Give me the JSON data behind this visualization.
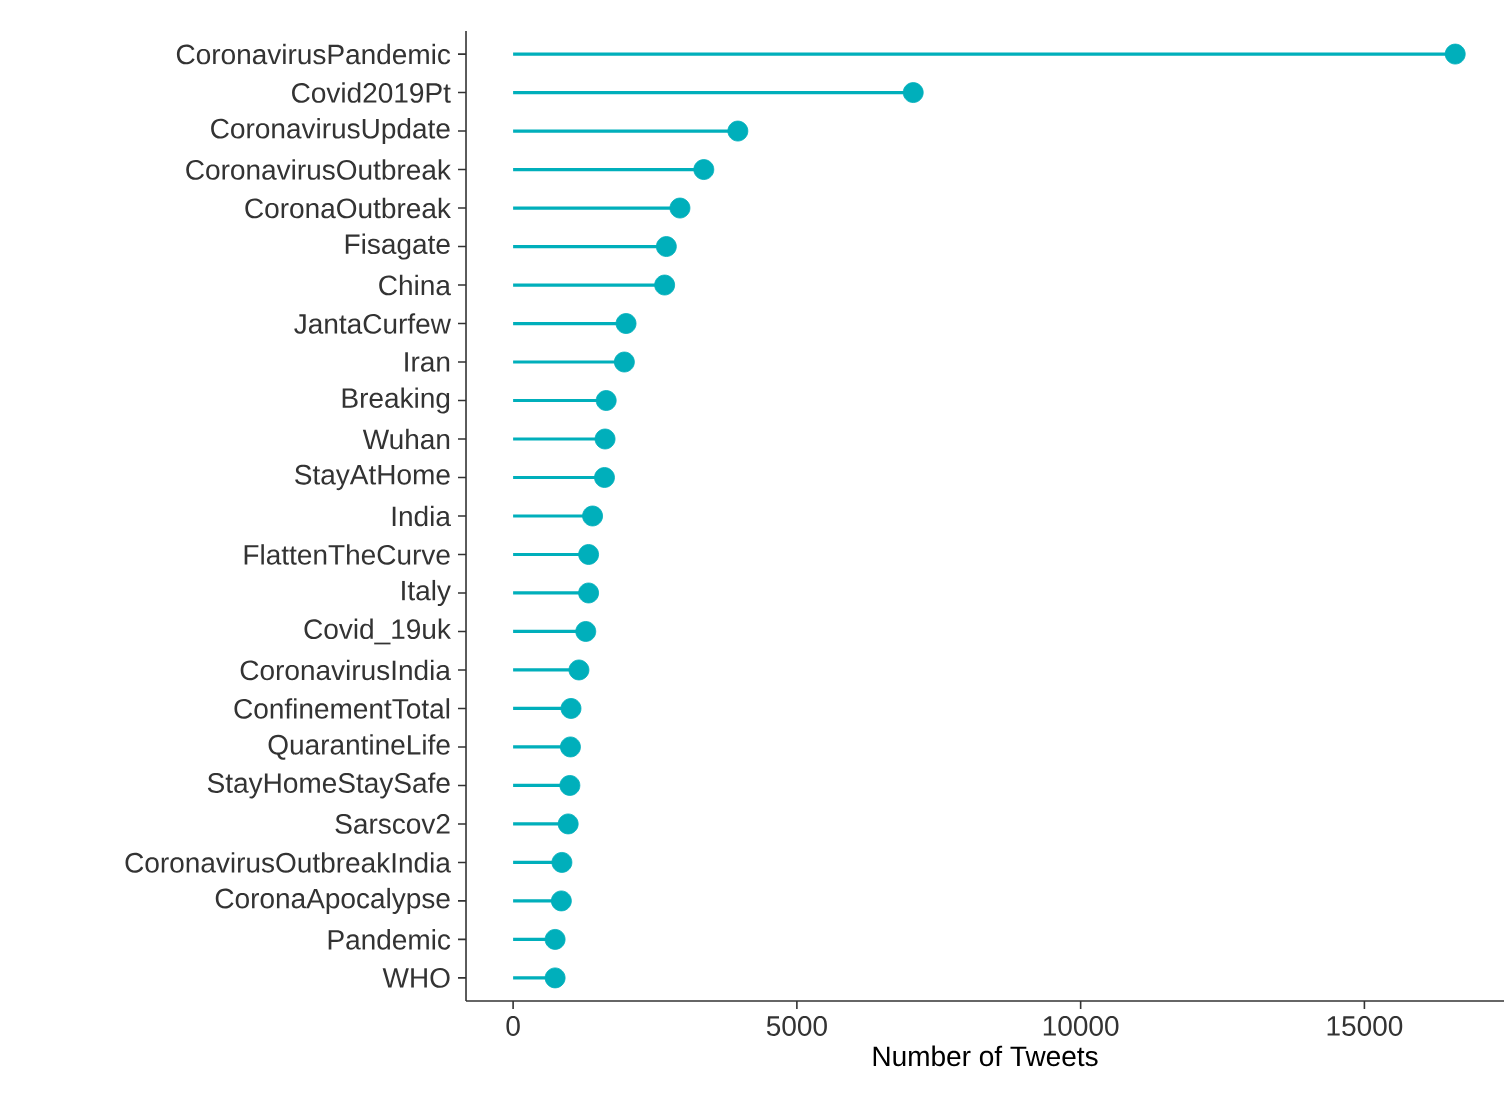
{
  "chart_data": {
    "type": "lollipop",
    "orientation": "horizontal",
    "xlabel": "Number of Tweets",
    "categories": [
      "CoronavirusPandemic",
      "Covid2019Pt",
      "CoronavirusUpdate",
      "CoronavirusOutbreak",
      "CoronaOutbreak",
      "Fisagate",
      "China",
      "JantaCurfew",
      "Iran",
      "Breaking",
      "Wuhan",
      "StayAtHome",
      "India",
      "FlattenTheCurve",
      "Italy",
      "Covid_19uk",
      "CoronavirusIndia",
      "ConfinementTotal",
      "QuarantineLife",
      "StayHomeStaySafe",
      "Sarscov2",
      "CoronavirusOutbreakIndia",
      "CoronaApocalypse",
      "Pandemic",
      "WHO"
    ],
    "values": [
      16600,
      7050,
      3960,
      3360,
      2940,
      2700,
      2670,
      1990,
      1960,
      1640,
      1620,
      1610,
      1400,
      1330,
      1330,
      1280,
      1160,
      1020,
      1010,
      1000,
      970,
      860,
      850,
      740,
      740
    ],
    "color": "#00afbb",
    "xlim": [
      -830,
      17460
    ],
    "xticks": [
      0,
      5000,
      10000,
      15000
    ],
    "grid": false
  }
}
